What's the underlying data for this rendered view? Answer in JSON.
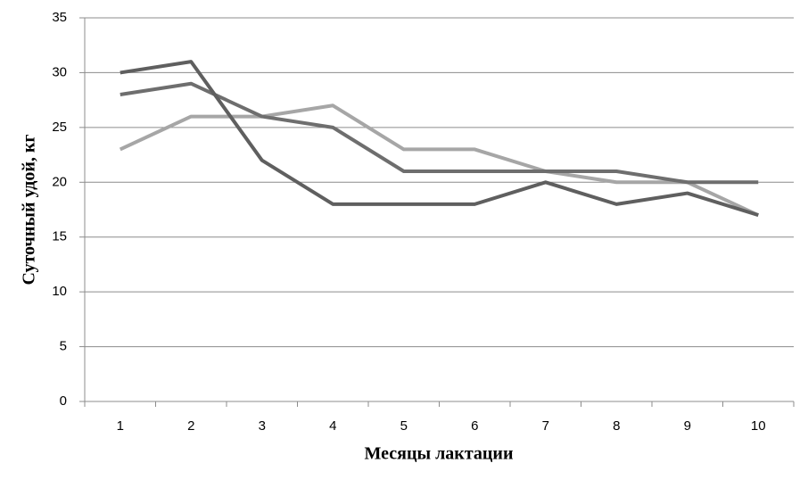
{
  "chart_data": {
    "type": "line",
    "x_label": "Месяцы лактации",
    "y_label": "Суточный удой, кг",
    "categories": [
      "1",
      "2",
      "3",
      "4",
      "5",
      "6",
      "7",
      "8",
      "9",
      "10"
    ],
    "series": [
      {
        "color": "#a6a6a6",
        "values": [
          23,
          26,
          26,
          27,
          23,
          23,
          21,
          20,
          20,
          17
        ]
      },
      {
        "color": "#6e6e6e",
        "values": [
          28,
          29,
          26,
          25,
          21,
          21,
          21,
          21,
          20,
          20
        ]
      },
      {
        "color": "#5f5f5f",
        "values": [
          30,
          31,
          22,
          18,
          18,
          18,
          20,
          18,
          19,
          17
        ]
      }
    ],
    "ylim": [
      0,
      35
    ],
    "yticks": [
      0,
      5,
      10,
      15,
      20,
      25,
      30,
      35
    ],
    "grid": true
  }
}
